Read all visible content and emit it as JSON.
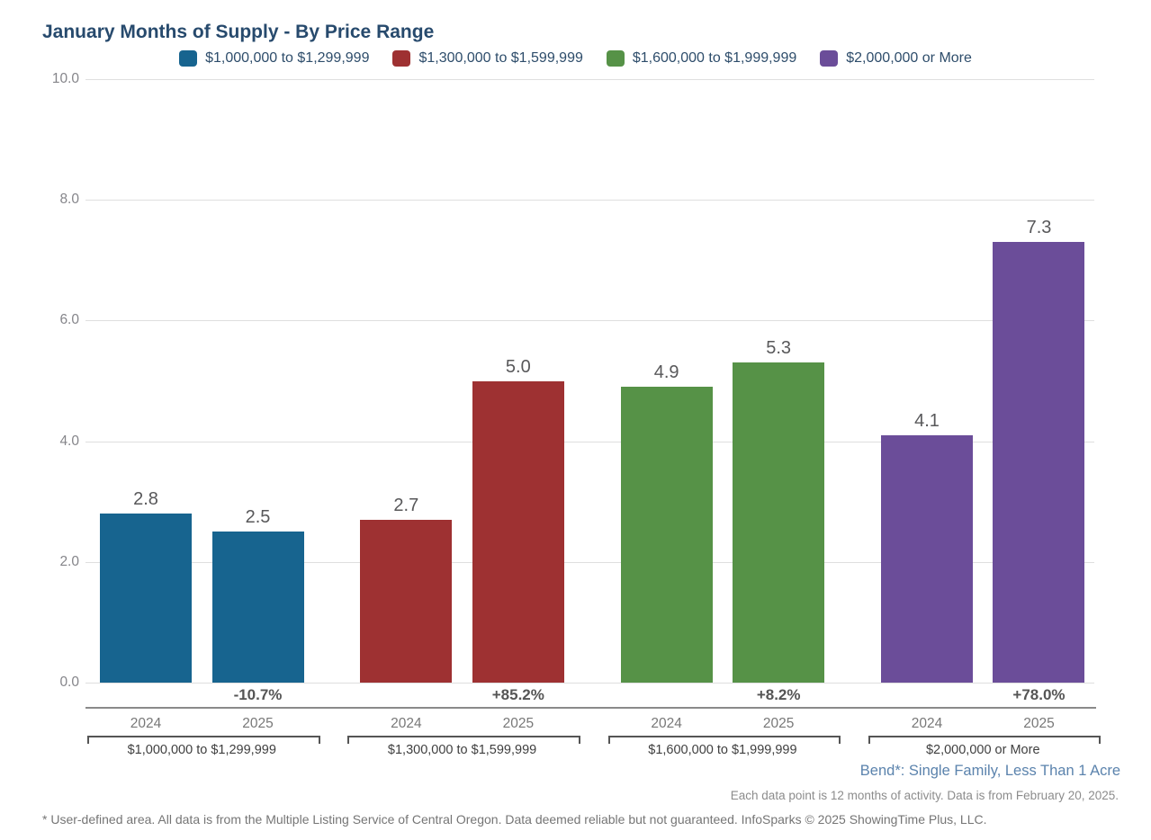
{
  "title": "January Months of Supply - By Price Range",
  "annotations": {
    "area_note": "Bend*: Single Family, Less Than 1 Acre",
    "data_note": "Each data point is 12 months of activity. Data is from February 20, 2025.",
    "disclaimer": "* User-defined area. All data is from the Multiple Listing Service of Central Oregon. Data deemed reliable but not guaranteed. InfoSparks © 2025 ShowingTime Plus, LLC."
  },
  "colors": {
    "title_text": "#274A6D",
    "legend_text": "#2E4D6B",
    "gridline": "#DFDFDF",
    "axis_line": "#8A8A8A",
    "blue": "#17648F",
    "red": "#9E3132",
    "green": "#569247",
    "purple": "#6B4D99",
    "area_note_text": "#5B83AD"
  },
  "chart_data": {
    "type": "bar",
    "title": "January Months of Supply - By Price Range",
    "categories": [
      "2024",
      "2025"
    ],
    "ylabel": "",
    "xlabel": "",
    "ylim": [
      0,
      10
    ],
    "y_ticks": [
      "0.0",
      "2.0",
      "4.0",
      "6.0",
      "8.0",
      "10.0"
    ],
    "grid": true,
    "legend_position": "top-center",
    "groups": [
      {
        "label": "$1,000,000 to $1,299,999",
        "color": "#17648F",
        "values": [
          2.8,
          2.5
        ],
        "change": "-10.7%"
      },
      {
        "label": "$1,300,000 to $1,599,999",
        "color": "#9E3132",
        "values": [
          2.7,
          5.0
        ],
        "change": "+85.2%"
      },
      {
        "label": "$1,600,000 to $1,999,999",
        "color": "#569247",
        "values": [
          4.9,
          5.3
        ],
        "change": "+8.2%"
      },
      {
        "label": "$2,000,000 or More",
        "color": "#6B4D99",
        "values": [
          4.1,
          7.3
        ],
        "change": "+78.0%"
      }
    ]
  }
}
